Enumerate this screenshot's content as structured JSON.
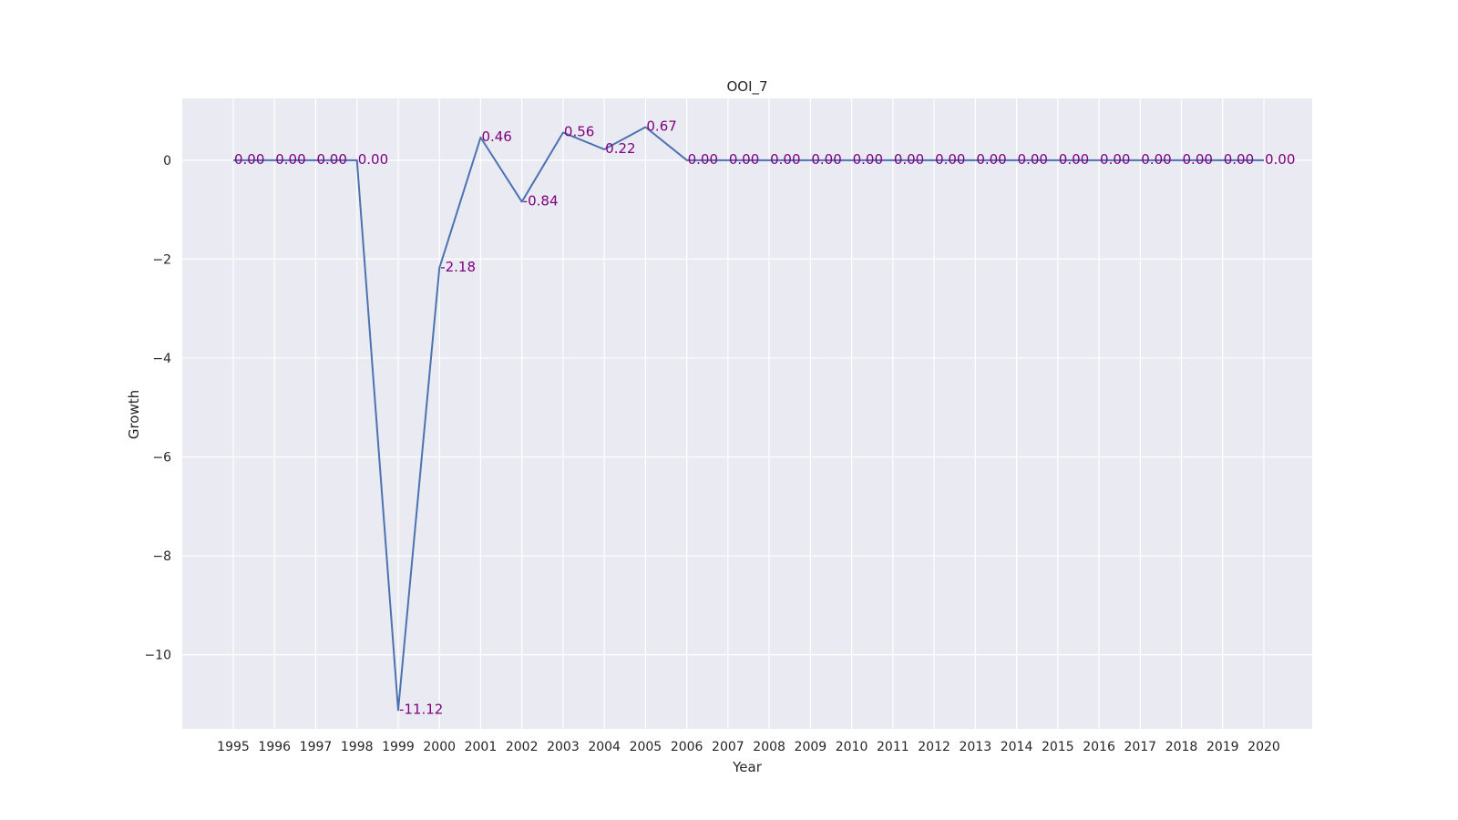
{
  "chart_data": {
    "type": "line",
    "title": "OOI_7",
    "xlabel": "Year",
    "ylabel": "Growth",
    "grid": true,
    "ylim": [
      -11.5,
      1.25
    ],
    "yticks": [
      0,
      -2,
      -4,
      -6,
      -8,
      -10
    ],
    "ytick_labels": [
      "0",
      "−2",
      "−4",
      "−6",
      "−8",
      "−10"
    ],
    "categories": [
      "1995",
      "1996",
      "1997",
      "1998",
      "1999",
      "2000",
      "2001",
      "2002",
      "2003",
      "2004",
      "2005",
      "2006",
      "2007",
      "2008",
      "2009",
      "2010",
      "2011",
      "2012",
      "2013",
      "2014",
      "2015",
      "2016",
      "2017",
      "2018",
      "2019",
      "2020"
    ],
    "series": [
      {
        "color": "#4c72b0",
        "values": [
          0,
          0,
          0,
          0,
          -11.12,
          -2.18,
          0.46,
          -0.84,
          0.56,
          0.22,
          0.67,
          0,
          0,
          0,
          0,
          0,
          0,
          0,
          0,
          0,
          0,
          0,
          0,
          0,
          0,
          0
        ],
        "labels": [
          "0.00",
          "0.00",
          "0.00",
          "0.00",
          "-11.12",
          "-2.18",
          "0.46",
          "-0.84",
          "0.56",
          "0.22",
          "0.67",
          "0.00",
          "0.00",
          "0.00",
          "0.00",
          "0.00",
          "0.00",
          "0.00",
          "0.00",
          "0.00",
          "0.00",
          "0.00",
          "0.00",
          "0.00",
          "0.00",
          "0.00"
        ]
      }
    ],
    "label_color": "#800080",
    "background_color": "#eaeaf2",
    "grid_color": "#ffffff"
  }
}
